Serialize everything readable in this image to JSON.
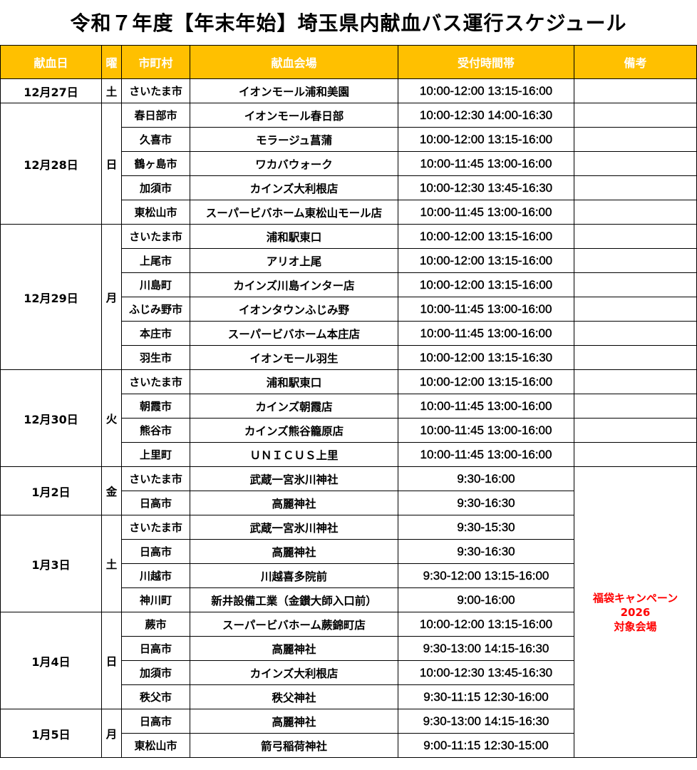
{
  "title": "令和７年度【年末年始】埼玉県内献血バス運行スケジュール",
  "colors": {
    "header_bg": "#FFC000",
    "header_text": "#FFFFFF",
    "note_text": "#FF0000"
  },
  "headers": [
    "献血日",
    "曜",
    "市町村",
    "献血会場",
    "受付時間帯",
    "備考"
  ],
  "days": [
    {
      "date": "12月27日",
      "weekday": "土",
      "rows": [
        [
          "さいたま市",
          "イオンモール浦和美園",
          "10:00-12:00 13:15-16:00"
        ]
      ]
    },
    {
      "date": "12月28日",
      "weekday": "日",
      "rows": [
        [
          "春日部市",
          "イオンモール春日部",
          "10:00-12:30 14:00-16:30"
        ],
        [
          "久喜市",
          "モラージュ菖蒲",
          "10:00-12:00 13:15-16:00"
        ],
        [
          "鶴ヶ島市",
          "ワカバウォーク",
          "10:00-11:45 13:00-16:00"
        ],
        [
          "加須市",
          "カインズ大利根店",
          "10:00-12:30 13:45-16:30"
        ],
        [
          "東松山市",
          "スーパービバホーム東松山モール店",
          "10:00-11:45 13:00-16:00"
        ]
      ]
    },
    {
      "date": "12月29日",
      "weekday": "月",
      "rows": [
        [
          "さいたま市",
          "浦和駅東口",
          "10:00-12:00 13:15-16:00"
        ],
        [
          "上尾市",
          "アリオ上尾",
          "10:00-12:00 13:15-16:00"
        ],
        [
          "川島町",
          "カインズ川島インター店",
          "10:00-12:00 13:15-16:00"
        ],
        [
          "ふじみ野市",
          "イオンタウンふじみ野",
          "10:00-11:45 13:00-16:00"
        ],
        [
          "本庄市",
          "スーパービバホーム本庄店",
          "10:00-11:45 13:00-16:00"
        ],
        [
          "羽生市",
          "イオンモール羽生",
          "10:00-12:00 13:15-16:30"
        ]
      ]
    },
    {
      "date": "12月30日",
      "weekday": "火",
      "rows": [
        [
          "さいたま市",
          "浦和駅東口",
          "10:00-12:00 13:15-16:00"
        ],
        [
          "朝霞市",
          "カインズ朝霞店",
          "10:00-11:45 13:00-16:00"
        ],
        [
          "熊谷市",
          "カインズ熊谷籠原店",
          "10:00-11:45 13:00-16:00"
        ],
        [
          "上里町",
          "ＵＮＩＣＵＳ上里",
          "10:00-11:45 13:00-16:00"
        ]
      ]
    },
    {
      "date": "1月2日",
      "weekday": "金",
      "rows": [
        [
          "さいたま市",
          "武蔵一宮氷川神社",
          "9:30-16:00"
        ],
        [
          "日高市",
          "高麗神社",
          "9:30-16:30"
        ]
      ]
    },
    {
      "date": "1月3日",
      "weekday": "土",
      "rows": [
        [
          "さいたま市",
          "武蔵一宮氷川神社",
          "9:30-15:30"
        ],
        [
          "日高市",
          "高麗神社",
          "9:30-16:30"
        ],
        [
          "川越市",
          "川越喜多院前",
          "9:30-12:00 13:15-16:00"
        ],
        [
          "神川町",
          "新井設備工業（金鑚大師入口前）",
          "9:00-16:00"
        ]
      ]
    },
    {
      "date": "1月4日",
      "weekday": "日",
      "rows": [
        [
          "蕨市",
          "スーパービバホーム蕨錦町店",
          "10:00-12:00 13:15-16:00"
        ],
        [
          "日高市",
          "高麗神社",
          "9:30-13:00 14:15-16:30"
        ],
        [
          "加須市",
          "カインズ大利根店",
          "10:00-12:30 13:45-16:30"
        ],
        [
          "秩父市",
          "秩父神社",
          "9:30-11:15 12:30-16:00"
        ]
      ]
    },
    {
      "date": "1月5日",
      "weekday": "月",
      "rows": [
        [
          "日高市",
          "高麗神社",
          "9:30-13:00 14:15-16:30"
        ],
        [
          "東松山市",
          "箭弓稲荷神社",
          "9:00-11:15 12:30-15:00"
        ]
      ]
    }
  ],
  "campaign_note": {
    "line1": "福袋キャンペーン",
    "line2": "2026",
    "line3": "対象会場",
    "from_day_index": 4
  }
}
